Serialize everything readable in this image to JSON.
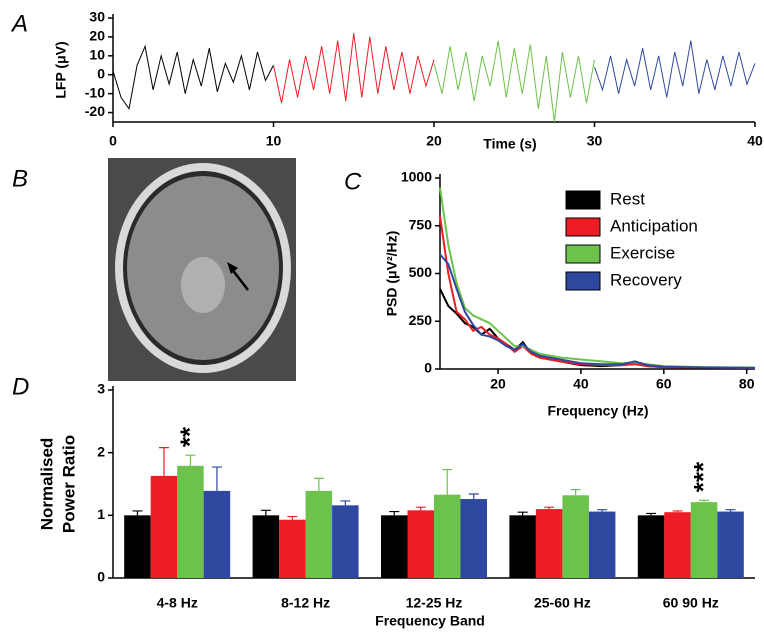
{
  "chart_data": [
    {
      "type": "line",
      "panel_label": "A",
      "ylabel": "LFP (μV)",
      "xlabel": "Time (s)",
      "xlim": [
        0,
        40
      ],
      "xticks": [
        0,
        10,
        20,
        30,
        40
      ],
      "ylim": [
        -25,
        30
      ],
      "yticks": [
        -20,
        -10,
        0,
        10,
        20,
        30
      ],
      "series": [
        {
          "color": "#000000",
          "x": [
            0,
            0.5,
            1,
            1.5,
            2,
            2.5,
            3,
            3.5,
            4,
            4.5,
            5,
            5.5,
            6,
            6.5,
            7,
            7.5,
            8,
            8.5,
            9,
            9.5,
            10
          ],
          "values": [
            2,
            -12,
            -18,
            5,
            15,
            -8,
            10,
            -5,
            12,
            -10,
            8,
            -6,
            14,
            -9,
            6,
            -4,
            10,
            -8,
            12,
            -3,
            5
          ]
        },
        {
          "color": "#ee1c25",
          "x": [
            10,
            10.5,
            11,
            11.5,
            12,
            12.5,
            13,
            13.5,
            14,
            14.5,
            15,
            15.5,
            16,
            16.5,
            17,
            17.5,
            18,
            18.5,
            19,
            19.5,
            20
          ],
          "values": [
            5,
            -15,
            8,
            -12,
            10,
            -8,
            15,
            -10,
            18,
            -14,
            22,
            -12,
            20,
            -10,
            15,
            -8,
            12,
            -10,
            10,
            -6,
            8
          ]
        },
        {
          "color": "#6cc24a",
          "x": [
            20,
            20.5,
            21,
            21.5,
            22,
            22.5,
            23,
            23.5,
            24,
            24.5,
            25,
            25.5,
            26,
            26.5,
            27,
            27.5,
            28,
            28.5,
            29,
            29.5,
            30
          ],
          "values": [
            6,
            -10,
            15,
            -8,
            12,
            -14,
            10,
            -6,
            18,
            -12,
            14,
            -10,
            16,
            -18,
            10,
            -25,
            12,
            -12,
            10,
            -15,
            8
          ]
        },
        {
          "color": "#2e48a0",
          "x": [
            30,
            30.5,
            31,
            31.5,
            32,
            32.5,
            33,
            33.5,
            34,
            34.5,
            35,
            35.5,
            36,
            36.5,
            37,
            37.5,
            38,
            38.5,
            39,
            39.5,
            40
          ],
          "values": [
            4,
            -8,
            10,
            -10,
            8,
            -6,
            14,
            -8,
            10,
            -12,
            12,
            -6,
            18,
            -10,
            8,
            -8,
            10,
            -6,
            12,
            -5,
            6
          ]
        }
      ]
    },
    {
      "type": "image",
      "panel_label": "B"
    },
    {
      "type": "line",
      "panel_label": "C",
      "ylabel": "PSD (μV²/Hz)",
      "xlabel": "Frequency (Hz)",
      "xlim": [
        6,
        82
      ],
      "xticks": [
        20,
        40,
        60,
        80
      ],
      "ylim": [
        0,
        1000
      ],
      "yticks": [
        0,
        250,
        500,
        750,
        1000
      ],
      "series": [
        {
          "name": "Rest",
          "color": "#000000",
          "x": [
            6,
            8,
            10,
            12,
            14,
            16,
            18,
            20,
            22,
            24,
            26,
            28,
            30,
            35,
            40,
            45,
            50,
            53,
            56,
            60,
            70,
            82
          ],
          "values": [
            420,
            330,
            290,
            240,
            220,
            180,
            210,
            160,
            130,
            100,
            140,
            80,
            60,
            40,
            20,
            15,
            20,
            30,
            15,
            10,
            8,
            6
          ]
        },
        {
          "name": "Anticipation",
          "color": "#ee1c25",
          "x": [
            6,
            8,
            10,
            12,
            14,
            16,
            18,
            20,
            22,
            24,
            26,
            28,
            30,
            35,
            40,
            45,
            50,
            53,
            56,
            60,
            70,
            82
          ],
          "values": [
            800,
            500,
            300,
            260,
            200,
            220,
            180,
            160,
            130,
            90,
            120,
            80,
            60,
            40,
            25,
            20,
            20,
            25,
            15,
            10,
            8,
            6
          ]
        },
        {
          "name": "Exercise",
          "color": "#6cc24a",
          "x": [
            6,
            8,
            10,
            12,
            14,
            16,
            18,
            20,
            22,
            24,
            26,
            28,
            30,
            35,
            40,
            45,
            50,
            53,
            56,
            60,
            70,
            82
          ],
          "values": [
            950,
            650,
            450,
            320,
            280,
            260,
            240,
            200,
            160,
            120,
            120,
            100,
            80,
            60,
            50,
            40,
            30,
            35,
            25,
            15,
            10,
            8
          ]
        },
        {
          "name": "Recovery",
          "color": "#2e48a0",
          "x": [
            6,
            8,
            10,
            12,
            14,
            16,
            18,
            20,
            22,
            24,
            26,
            28,
            30,
            35,
            40,
            45,
            50,
            53,
            56,
            60,
            70,
            82
          ],
          "values": [
            600,
            550,
            420,
            300,
            230,
            180,
            170,
            150,
            120,
            100,
            130,
            90,
            70,
            50,
            30,
            25,
            25,
            40,
            20,
            12,
            8,
            6
          ]
        }
      ]
    },
    {
      "type": "bar",
      "panel_label": "D",
      "ylabel": [
        "Normalised",
        "Power Ratio"
      ],
      "xlabel": "Frequency Band",
      "categories": [
        "4-8 Hz",
        "8-12 Hz",
        "12-25 Hz",
        "25-60 Hz",
        "60 90 Hz"
      ],
      "ylim": [
        0,
        3
      ],
      "yticks": [
        0,
        1,
        2,
        3
      ],
      "series": [
        {
          "color": "#000000",
          "values": [
            1,
            1,
            1,
            1,
            1
          ],
          "errors": [
            0.07,
            0.08,
            0.06,
            0.05,
            0.03
          ]
        },
        {
          "color": "#ee1c25",
          "values": [
            1.63,
            0.93,
            1.08,
            1.1,
            1.05
          ],
          "errors": [
            0.45,
            0.05,
            0.05,
            0.03,
            0.02
          ]
        },
        {
          "color": "#6cc24a",
          "values": [
            1.79,
            1.39,
            1.33,
            1.32,
            1.21
          ],
          "errors": [
            0.17,
            0.2,
            0.4,
            0.09,
            0.03
          ]
        },
        {
          "color": "#2e48a0",
          "values": [
            1.39,
            1.16,
            1.26,
            1.06,
            1.06
          ],
          "errors": [
            0.38,
            0.07,
            0.08,
            0.03,
            0.03
          ]
        }
      ],
      "annotations": [
        "**",
        "***"
      ]
    }
  ]
}
